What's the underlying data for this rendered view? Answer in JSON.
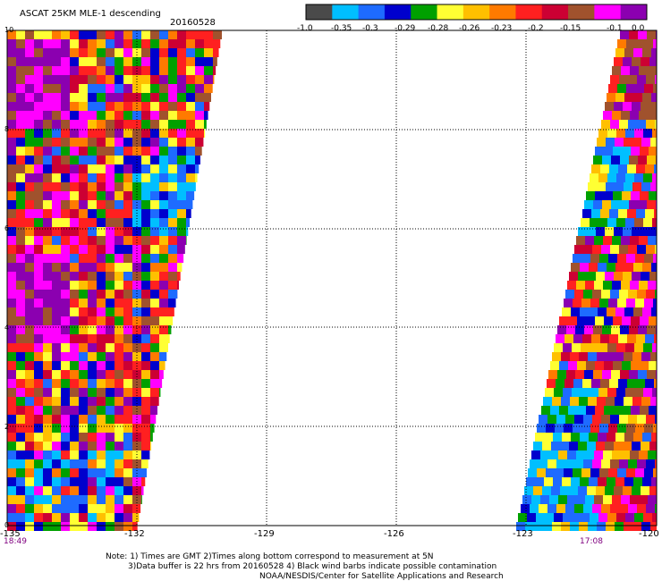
{
  "header": {
    "title": "ASCAT 25KM MLE-1 descending",
    "date": "20160528"
  },
  "colorbar": {
    "colors": [
      "#4a4a4a",
      "#00bfff",
      "#1e6bff",
      "#0000cd",
      "#00a000",
      "#ffff33",
      "#ffc000",
      "#ff7a00",
      "#ff2020",
      "#cc0033",
      "#a0522d",
      "#ff00ff",
      "#8b00b0"
    ],
    "tick_labels": [
      "-1.0",
      "-0.35",
      "-0.3",
      "-0.29",
      "-0.28",
      "-0.26",
      "-0.23",
      "-0.2",
      "-0.15",
      "-0.1",
      "0.0"
    ]
  },
  "map": {
    "x_tick_labels": [
      "-135",
      "-132",
      "-129",
      "-126",
      "-123",
      "-120"
    ],
    "y_tick_labels": [
      "0",
      "2",
      "4",
      "6",
      "8",
      "10"
    ],
    "time_labels": [
      "18:49",
      "17:08"
    ]
  },
  "notes": [
    "Note: 1) Times are GMT 2)Times along bottom correspond to measurement at 5N",
    "3)Data buffer is 22 hrs from 20160528 4) Black wind barbs indicate possible contamination",
    "NOAA/NESDIS/Center for Satellite Applications and Research"
  ]
}
